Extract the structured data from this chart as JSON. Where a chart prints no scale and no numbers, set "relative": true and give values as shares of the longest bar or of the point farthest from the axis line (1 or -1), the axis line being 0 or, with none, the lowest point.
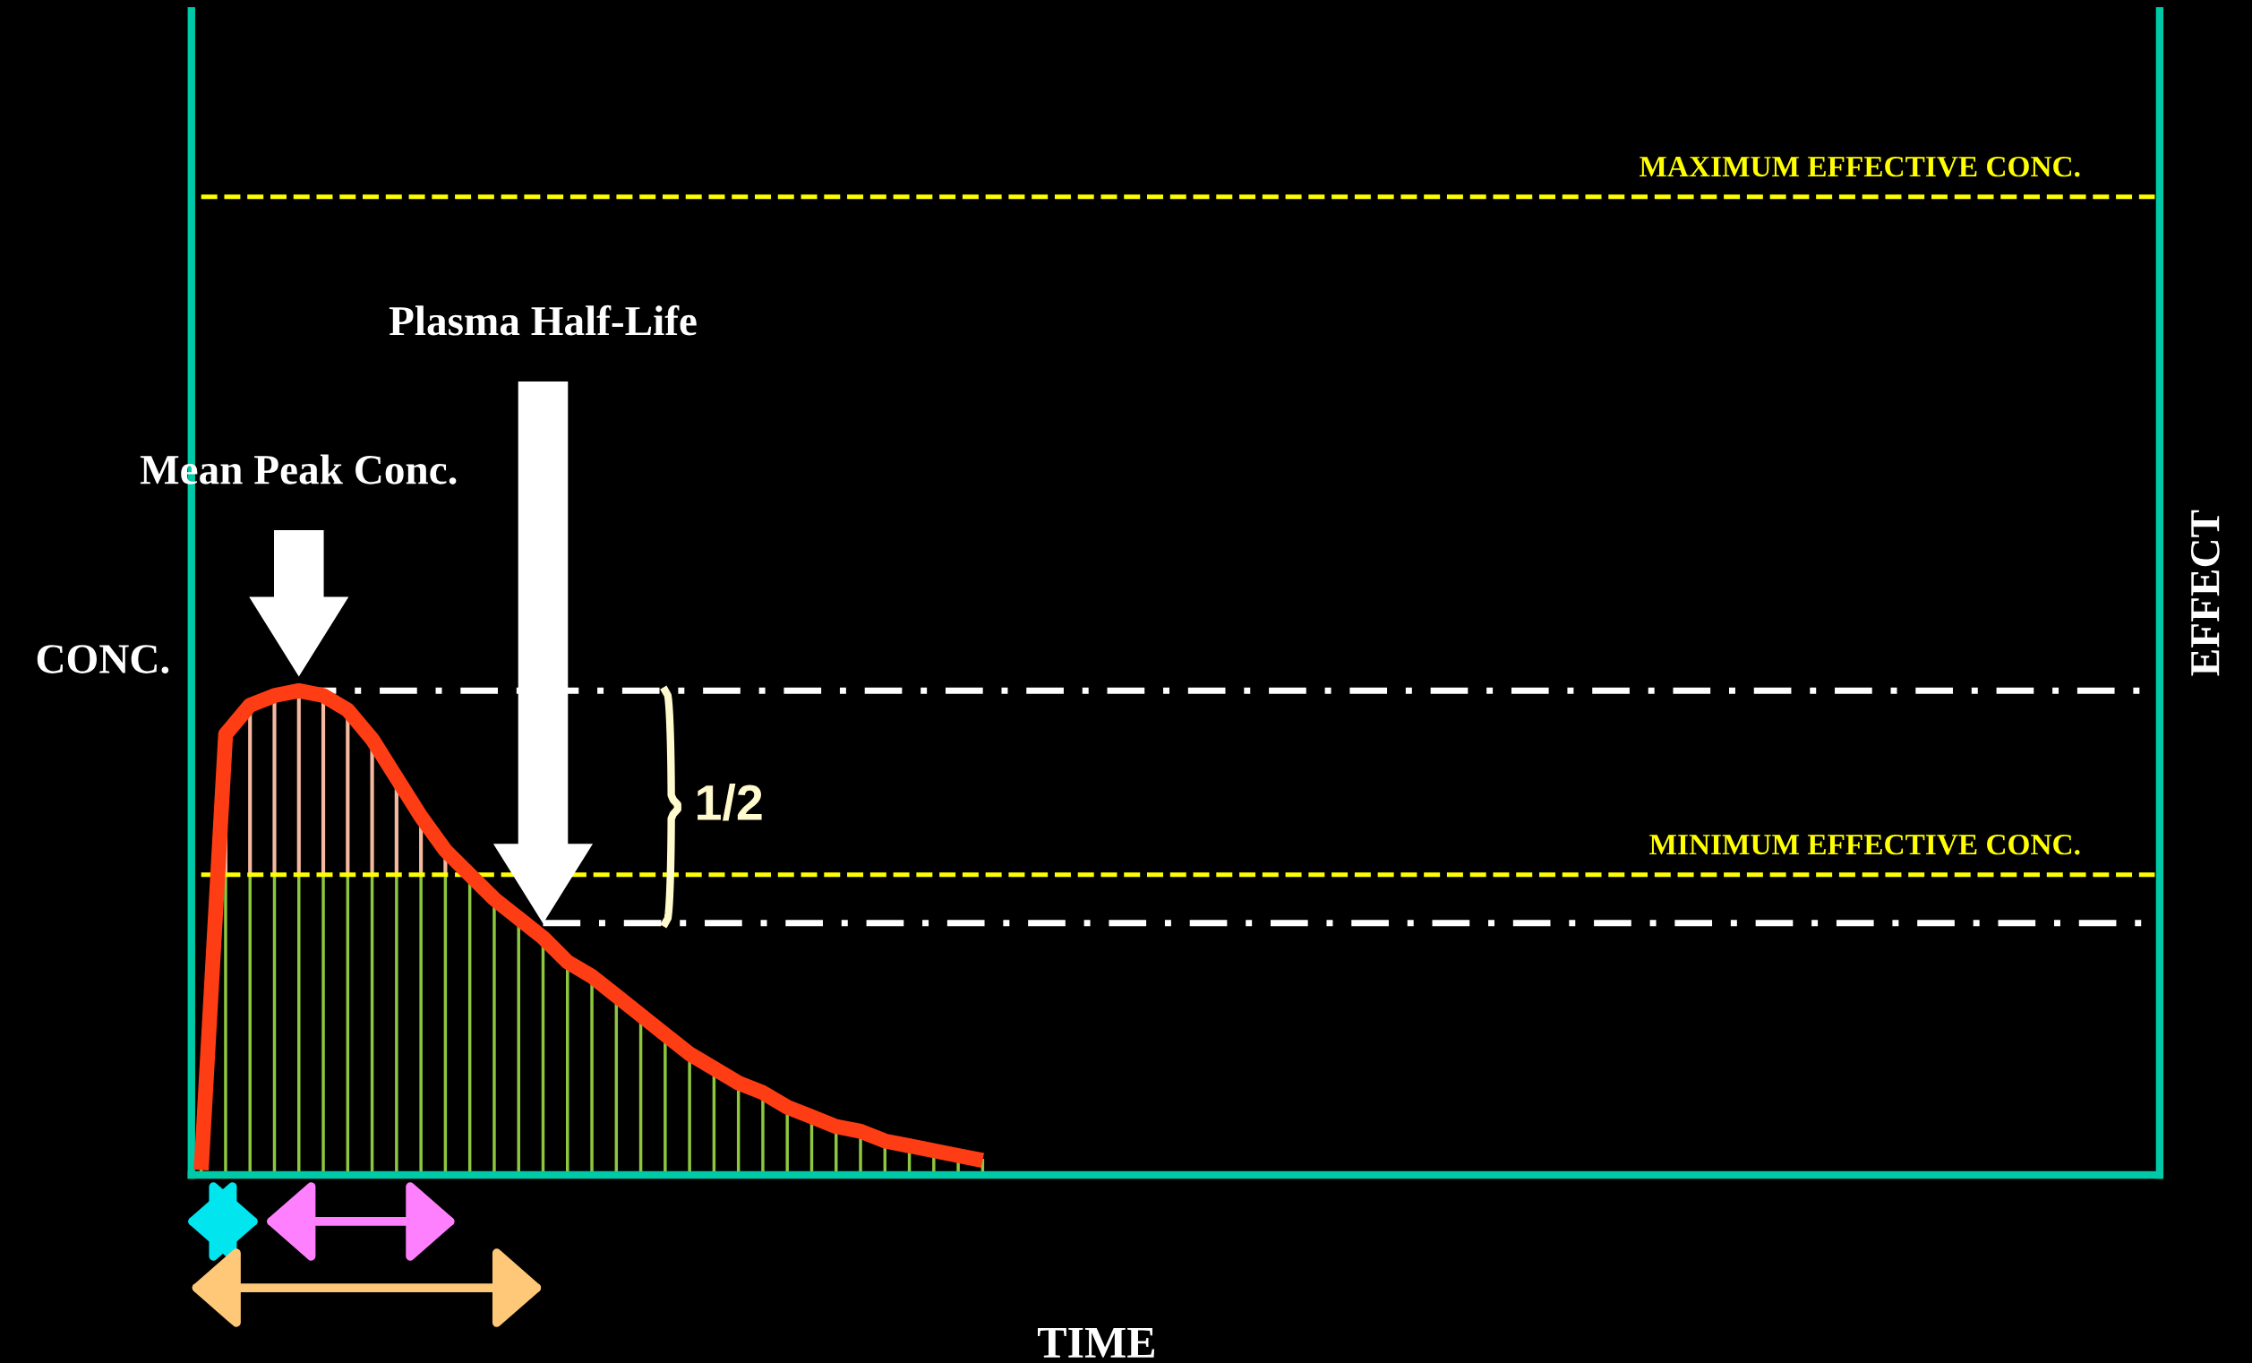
{
  "chart_data": {
    "type": "line",
    "relative": true,
    "xlabel": "TIME",
    "ylabel": "CONC.",
    "y2label": "EFFECT",
    "categories": [
      null,
      null,
      null,
      null,
      null,
      null,
      null,
      null,
      null,
      null,
      null,
      null,
      null,
      null,
      null,
      null,
      null,
      null,
      null,
      null,
      null,
      null,
      null,
      null,
      null,
      null,
      null,
      null,
      null,
      null,
      null,
      null,
      null,
      null,
      null,
      null,
      null,
      null,
      null,
      null,
      null,
      null,
      null,
      null,
      null,
      null,
      null,
      null,
      null,
      null,
      null,
      null,
      null,
      null,
      null,
      null,
      null,
      null,
      null,
      null,
      null,
      null,
      null,
      null,
      null,
      null,
      null,
      null,
      null,
      null,
      null,
      null,
      null,
      null,
      null,
      null,
      null,
      null,
      null,
      null,
      null
    ],
    "series": [
      {
        "color": "#ff3d14",
        "values": [
          0.01,
          0.91,
          0.97,
          0.99,
          1.0,
          0.99,
          0.96,
          0.9,
          0.82,
          0.74,
          0.67,
          0.62,
          0.57,
          0.53,
          0.49,
          0.44,
          0.41,
          0.37,
          0.33,
          0.29,
          0.25,
          0.22,
          0.19,
          0.17,
          0.14,
          0.12,
          0.1,
          0.09,
          0.07,
          0.06,
          0.05,
          0.04,
          0.03,
          null,
          null,
          null,
          null,
          null,
          null,
          null,
          null,
          null,
          null,
          null,
          null,
          null,
          null,
          null,
          null,
          null,
          null,
          null,
          null,
          null,
          null,
          null,
          null,
          null,
          null,
          null,
          null,
          null,
          null,
          null,
          null,
          null,
          null,
          null,
          null,
          null,
          null,
          null,
          null,
          null,
          null,
          null,
          null,
          null,
          null,
          null,
          null
        ]
      }
    ],
    "ref_lines": [
      {
        "axis": "y",
        "value": 2.02,
        "label": "MAXIMUM EFFECTIVE CONC.",
        "color": "#ffff00",
        "line_style": "dashed"
      },
      {
        "axis": "y",
        "value": 1.0,
        "label": null,
        "color": "#ffffff",
        "line_style": "dashdot"
      },
      {
        "axis": "y",
        "value": 0.62,
        "label": "MINIMUM EFFECTIVE CONC.",
        "color": "#ffff00",
        "line_style": "dashed"
      },
      {
        "axis": "y",
        "value": 0.52,
        "label": null,
        "color": "#ffffff",
        "line_style": "dashdot"
      }
    ],
    "annotations": [
      "Mean Peak Conc.",
      "Plasma Half-Life",
      "1/2"
    ],
    "marker": "none",
    "line_style": "solid",
    "grid": false,
    "legend": false
  }
}
